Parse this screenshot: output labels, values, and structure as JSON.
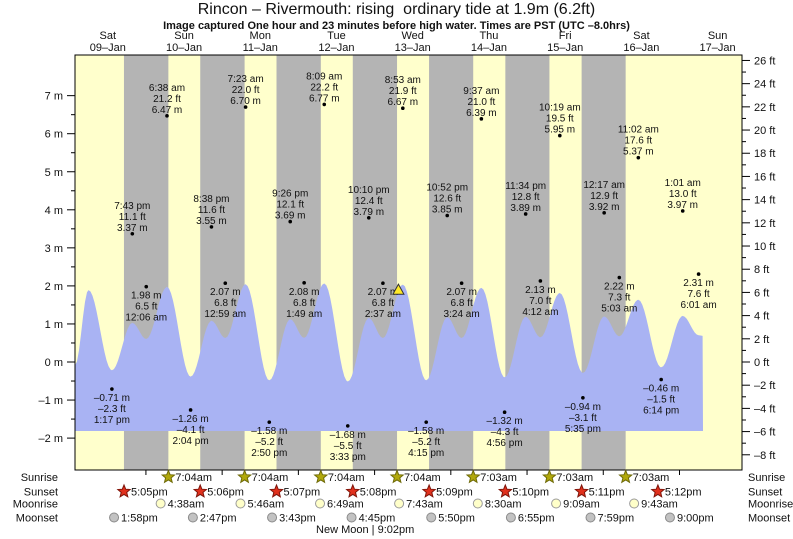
{
  "title": "Rincon – Rivermouth: rising  ordinary tide at 1.9m (6.2ft)",
  "subtitle": "Image captured One hour and 23 minutes before high water. Times are PST (UTC –8.0hrs)",
  "chart_data": {
    "type": "area",
    "title": "Rincon – Rivermouth tide curve",
    "x_axis_days": [
      {
        "dow": "Sat",
        "date": "09–Jan"
      },
      {
        "dow": "Sun",
        "date": "10–Jan"
      },
      {
        "dow": "Mon",
        "date": "11–Jan"
      },
      {
        "dow": "Tue",
        "date": "12–Jan"
      },
      {
        "dow": "Wed",
        "date": "13–Jan"
      },
      {
        "dow": "Thu",
        "date": "14–Jan"
      },
      {
        "dow": "Fri",
        "date": "15–Jan"
      },
      {
        "dow": "Sat",
        "date": "16–Jan"
      },
      {
        "dow": "Sun",
        "date": "17–Jan"
      }
    ],
    "y_axis_left": {
      "unit": "m",
      "min": -2,
      "max": 7,
      "label_step": 1,
      "minor_step": 0.5
    },
    "y_axis_right": {
      "unit": "ft",
      "min": -8,
      "max": 26,
      "label_step": 2,
      "minor_step": 1
    },
    "tide_events": [
      {
        "day_index": 0,
        "time": "1:17 pm",
        "height_m": -0.71,
        "height_ft": -2.3,
        "type": "low"
      },
      {
        "day_index": 0,
        "time": "7:43 pm",
        "height_m": 3.37,
        "height_ft": 11.1,
        "type": "high"
      },
      {
        "day_index": 1,
        "time": "12:06 am",
        "height_m": 1.98,
        "height_ft": 6.5,
        "type": "low"
      },
      {
        "day_index": 1,
        "time": "6:38 am",
        "height_m": 6.47,
        "height_ft": 21.2,
        "type": "high"
      },
      {
        "day_index": 1,
        "time": "2:04 pm",
        "height_m": -1.26,
        "height_ft": -4.1,
        "type": "low"
      },
      {
        "day_index": 1,
        "time": "8:38 pm",
        "height_m": 3.55,
        "height_ft": 11.6,
        "type": "high"
      },
      {
        "day_index": 2,
        "time": "12:59 am",
        "height_m": 2.07,
        "height_ft": 6.8,
        "type": "low"
      },
      {
        "day_index": 2,
        "time": "7:23 am",
        "height_m": 6.7,
        "height_ft": 22.0,
        "type": "high"
      },
      {
        "day_index": 2,
        "time": "2:50 pm",
        "height_m": -1.58,
        "height_ft": -5.2,
        "type": "low"
      },
      {
        "day_index": 2,
        "time": "9:26 pm",
        "height_m": 3.69,
        "height_ft": 12.1,
        "type": "high"
      },
      {
        "day_index": 3,
        "time": "1:49 am",
        "height_m": 2.08,
        "height_ft": 6.8,
        "type": "low"
      },
      {
        "day_index": 3,
        "time": "8:09 am",
        "height_m": 6.77,
        "height_ft": 22.2,
        "type": "high"
      },
      {
        "day_index": 3,
        "time": "3:33 pm",
        "height_m": -1.68,
        "height_ft": -5.5,
        "type": "low"
      },
      {
        "day_index": 3,
        "time": "10:10 pm",
        "height_m": 3.79,
        "height_ft": 12.4,
        "type": "high"
      },
      {
        "day_index": 4,
        "time": "2:37 am",
        "height_m": 2.07,
        "height_ft": 6.8,
        "type": "low"
      },
      {
        "day_index": 4,
        "time": "8:53 am",
        "height_m": 6.67,
        "height_ft": 21.9,
        "type": "high"
      },
      {
        "day_index": 4,
        "time": "4:15 pm",
        "height_m": -1.58,
        "height_ft": -5.2,
        "type": "low"
      },
      {
        "day_index": 4,
        "time": "10:52 pm",
        "height_m": 3.85,
        "height_ft": 12.6,
        "type": "high"
      },
      {
        "day_index": 5,
        "time": "3:24 am",
        "height_m": 2.07,
        "height_ft": 6.8,
        "type": "low"
      },
      {
        "day_index": 5,
        "time": "9:37 am",
        "height_m": 6.39,
        "height_ft": 21.0,
        "type": "high"
      },
      {
        "day_index": 5,
        "time": "4:56 pm",
        "height_m": -1.32,
        "height_ft": -4.3,
        "type": "low"
      },
      {
        "day_index": 5,
        "time": "11:34 pm",
        "height_m": 3.89,
        "height_ft": 12.8,
        "type": "high"
      },
      {
        "day_index": 6,
        "time": "4:12 am",
        "height_m": 2.13,
        "height_ft": 7.0,
        "type": "low"
      },
      {
        "day_index": 6,
        "time": "10:19 am",
        "height_m": 5.95,
        "height_ft": 19.5,
        "type": "high"
      },
      {
        "day_index": 6,
        "time": "5:35 pm",
        "height_m": -0.94,
        "height_ft": -3.1,
        "type": "low"
      },
      {
        "day_index": 7,
        "time": "12:17 am",
        "height_m": 3.92,
        "height_ft": 12.9,
        "type": "high"
      },
      {
        "day_index": 7,
        "time": "5:03 am",
        "height_m": 2.22,
        "height_ft": 7.3,
        "type": "low"
      },
      {
        "day_index": 7,
        "time": "11:02 am",
        "height_m": 5.37,
        "height_ft": 17.6,
        "type": "high"
      },
      {
        "day_index": 7,
        "time": "6:14 pm",
        "height_m": -0.46,
        "height_ft": -1.5,
        "type": "low"
      },
      {
        "day_index": 8,
        "time": "1:01 am",
        "height_m": 3.97,
        "height_ft": 13.0,
        "type": "high"
      },
      {
        "day_index": 8,
        "time": "6:01 am",
        "height_m": 2.31,
        "height_ft": 7.6,
        "type": "low"
      }
    ],
    "current_tide_marker": {
      "day_index": 4,
      "time": "7:30 am",
      "height_m": 1.9,
      "height_ft": 6.2
    },
    "curve_leadin": [
      {
        "day_index": 0,
        "time": "1:40 am",
        "height_m": -0.3
      },
      {
        "day_index": 0,
        "time": "5:55 am",
        "height_m": 6.2
      }
    ],
    "curve_end": {
      "day_index": 8,
      "time": "7:30 am",
      "height_m": 2.25
    }
  },
  "astro": {
    "rows": [
      {
        "label": "Sunrise",
        "marker": "sunrise-star",
        "entries": [
          {
            "day_index": 1,
            "time": "7:04am"
          },
          {
            "day_index": 2,
            "time": "7:04am"
          },
          {
            "day_index": 3,
            "time": "7:04am"
          },
          {
            "day_index": 4,
            "time": "7:04am"
          },
          {
            "day_index": 5,
            "time": "7:03am"
          },
          {
            "day_index": 6,
            "time": "7:03am"
          },
          {
            "day_index": 7,
            "time": "7:03am"
          }
        ]
      },
      {
        "label": "Sunset",
        "marker": "sunset-star",
        "entries": [
          {
            "day_index": 0,
            "time": "5:05pm"
          },
          {
            "day_index": 1,
            "time": "5:06pm"
          },
          {
            "day_index": 2,
            "time": "5:07pm"
          },
          {
            "day_index": 3,
            "time": "5:08pm"
          },
          {
            "day_index": 4,
            "time": "5:09pm"
          },
          {
            "day_index": 5,
            "time": "5:10pm"
          },
          {
            "day_index": 6,
            "time": "5:11pm"
          },
          {
            "day_index": 7,
            "time": "5:12pm"
          }
        ]
      },
      {
        "label": "Moonrise",
        "marker": "moonrise-circle",
        "entries": [
          {
            "day_index": 1,
            "time": "4:38am"
          },
          {
            "day_index": 2,
            "time": "5:46am"
          },
          {
            "day_index": 3,
            "time": "6:49am"
          },
          {
            "day_index": 4,
            "time": "7:43am"
          },
          {
            "day_index": 5,
            "time": "8:30am"
          },
          {
            "day_index": 6,
            "time": "9:09am"
          },
          {
            "day_index": 7,
            "time": "9:43am"
          }
        ]
      },
      {
        "label": "Moonset",
        "marker": "moonset-circle",
        "entries": [
          {
            "day_index": 0,
            "time": "1:58pm"
          },
          {
            "day_index": 1,
            "time": "2:47pm"
          },
          {
            "day_index": 2,
            "time": "3:43pm"
          },
          {
            "day_index": 3,
            "time": "4:45pm"
          },
          {
            "day_index": 4,
            "time": "5:50pm"
          },
          {
            "day_index": 5,
            "time": "6:55pm"
          },
          {
            "day_index": 6,
            "time": "7:59pm"
          },
          {
            "day_index": 7,
            "time": "9:00pm"
          }
        ]
      }
    ],
    "moon_phase_note": "New Moon | 9:02pm",
    "moon_phase_day_index": 3
  },
  "colors": {
    "plot_bg": "#ffffcc",
    "night_band": "#b4b4b4",
    "tide_fill": "#a9b3f3",
    "day_label": "#ff0000",
    "sunrise_star_fill": "#b1a80b",
    "sunrise_star_stroke": "#6e6a08",
    "sunset_star_fill": "#e1301c",
    "sunset_star_stroke": "#7e150a",
    "moonrise_fill": "#ffffc9",
    "moonrise_stroke": "#9a9a9a",
    "moonset_fill": "#c2c2c2",
    "moonset_stroke": "#8a8a8a",
    "current_marker_fill": "#ffe928",
    "axis": "#000000"
  }
}
